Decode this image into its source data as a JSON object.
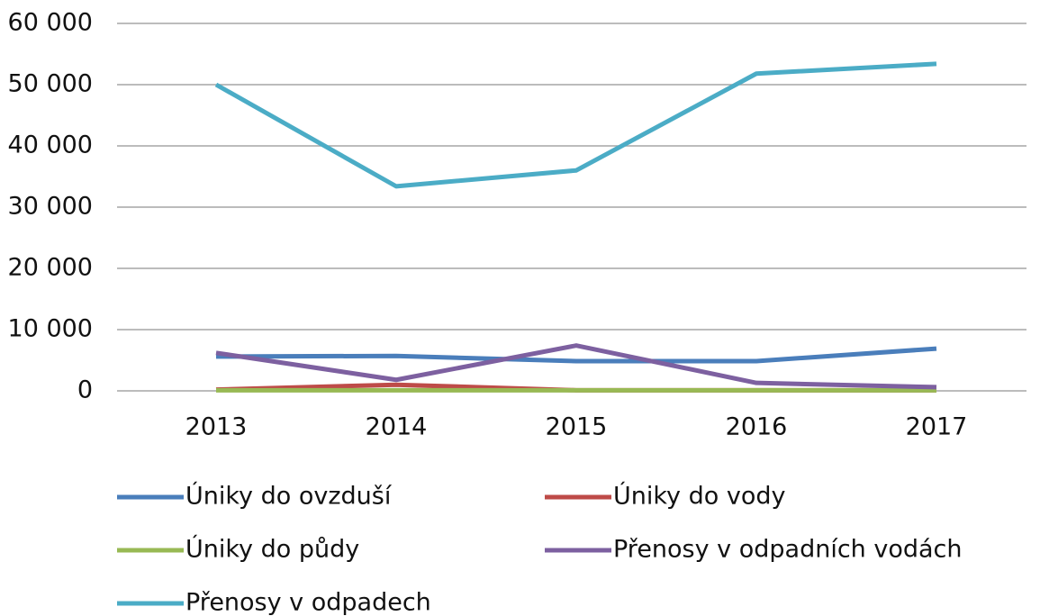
{
  "chart_data": {
    "type": "line",
    "categories": [
      "2013",
      "2014",
      "2015",
      "2016",
      "2017"
    ],
    "series": [
      {
        "name": "Úniky do ovzduší",
        "color": "#4a7ebb",
        "values": [
          5600,
          5700,
          4850,
          4850,
          6900
        ]
      },
      {
        "name": "Úniky do vody",
        "color": "#be4b48",
        "values": [
          200,
          1000,
          100,
          100,
          100
        ]
      },
      {
        "name": "Úniky do půdy",
        "color": "#98b954",
        "values": [
          100,
          100,
          100,
          100,
          100
        ]
      },
      {
        "name": "Přenosy v odpadních vodách",
        "color": "#7d60a0",
        "values": [
          6200,
          1800,
          7400,
          1300,
          600
        ]
      },
      {
        "name": "Přenosy v odpadech",
        "color": "#4bacc6",
        "values": [
          50000,
          33400,
          36000,
          51800,
          53400
        ]
      }
    ],
    "ylim": [
      0,
      60000
    ],
    "yticks": [
      0,
      {
        "value": 10000,
        "label": "10 000"
      },
      {
        "value": 20000,
        "label": "20 000"
      },
      {
        "value": 30000,
        "label": "30 000"
      },
      {
        "value": 40000,
        "label": "40 000"
      },
      {
        "value": 50000,
        "label": "50 000"
      },
      {
        "value": 60000,
        "label": "60 000"
      }
    ],
    "grid": true
  }
}
